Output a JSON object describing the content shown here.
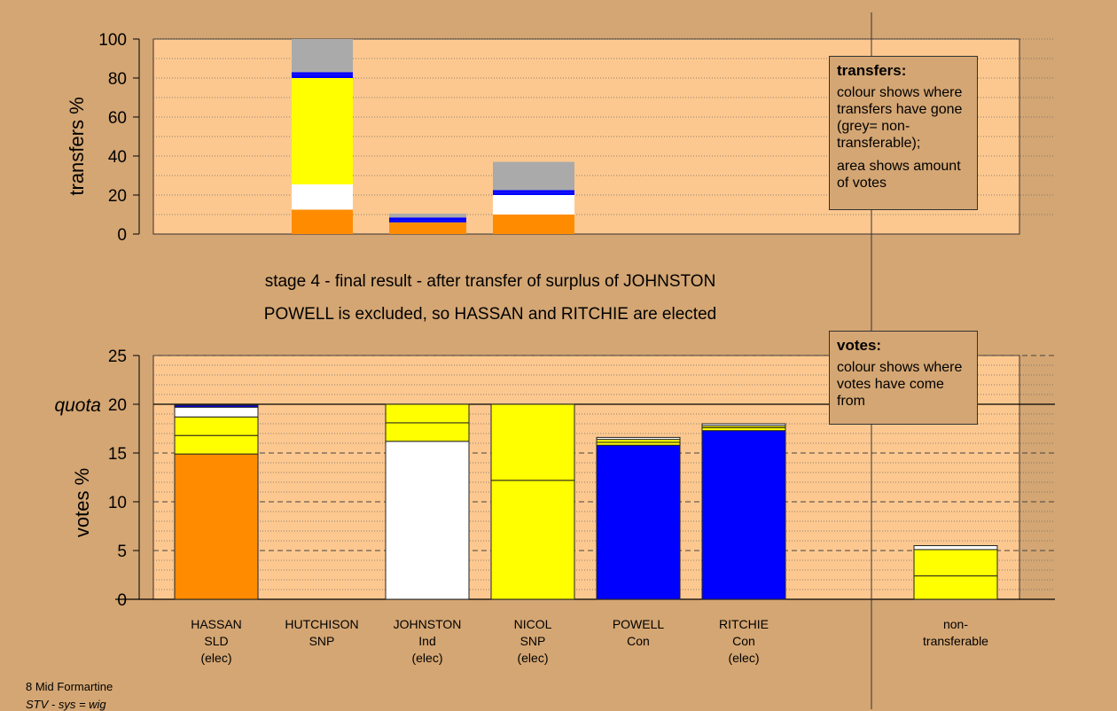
{
  "chart_data": [
    {
      "type": "bar",
      "stacked": true,
      "ylabel": "transfers %",
      "ylim": [
        0,
        100
      ],
      "yticks": [
        0,
        20,
        40,
        60,
        80,
        100
      ],
      "grid": "dotted",
      "colors": {
        "SLD": "#ff8c00",
        "Ind": "#ffffff",
        "SNP": "#ffff00",
        "Con": "#0000ff",
        "non-transferable": "#aaaaaa"
      },
      "bars": [
        {
          "from": "HUTCHISON",
          "segments": [
            {
              "to": "HASSAN",
              "value": 12.5,
              "color": "#ff8c00"
            },
            {
              "to": "JOHNSTON",
              "value": 13.0,
              "color": "#ffffff"
            },
            {
              "to": "NICOL",
              "value": 54.5,
              "color": "#ffff00"
            },
            {
              "to": "POWELL",
              "value": 1.5,
              "color": "#0000ff"
            },
            {
              "to": "RITCHIE",
              "value": 1.5,
              "color": "#0000ff"
            },
            {
              "to": "non-transferable",
              "value": 17.0,
              "color": "#aaaaaa"
            }
          ]
        },
        {
          "from": "JOHNSTON",
          "segments": [
            {
              "to": "HASSAN",
              "value": 6.0,
              "color": "#ff8c00"
            },
            {
              "to": "POWELL",
              "value": 1.0,
              "color": "#0000ff"
            },
            {
              "to": "RITCHIE",
              "value": 1.5,
              "color": "#0000ff"
            },
            {
              "to": "non-transferable",
              "value": 2.0,
              "color": "#aaaaaa"
            }
          ]
        },
        {
          "from": "NICOL",
          "segments": [
            {
              "to": "HASSAN",
              "value": 10.0,
              "color": "#ff8c00"
            },
            {
              "to": "JOHNSTON",
              "value": 10.0,
              "color": "#ffffff"
            },
            {
              "to": "POWELL",
              "value": 1.0,
              "color": "#0000ff"
            },
            {
              "to": "RITCHIE",
              "value": 1.5,
              "color": "#0000ff"
            },
            {
              "to": "non-transferable",
              "value": 14.5,
              "color": "#aaaaaa"
            }
          ]
        }
      ]
    },
    {
      "type": "bar",
      "stacked": true,
      "ylabel": "votes %",
      "ylim": [
        0,
        25
      ],
      "yticks": [
        0,
        5,
        10,
        15,
        20,
        25
      ],
      "quota": 20,
      "quota_label": "quota",
      "categories": [
        {
          "name": "HASSAN",
          "party": "SLD",
          "status": "(elec)"
        },
        {
          "name": "HUTCHISON",
          "party": "SNP",
          "status": ""
        },
        {
          "name": "JOHNSTON",
          "party": "Ind",
          "status": "(elec)"
        },
        {
          "name": "NICOL",
          "party": "SNP",
          "status": "(elec)"
        },
        {
          "name": "POWELL",
          "party": "Con",
          "status": ""
        },
        {
          "name": "RITCHIE",
          "party": "Con",
          "status": "(elec)"
        },
        {
          "name": "non-",
          "party": "transferable",
          "status": ""
        }
      ],
      "stacks": [
        [
          {
            "value": 14.9,
            "color": "#ff8c00"
          },
          {
            "value": 1.9,
            "color": "#ffff00"
          },
          {
            "value": 1.9,
            "color": "#ffff00"
          },
          {
            "value": 1.0,
            "color": "#ffffff"
          },
          {
            "value": 0.2,
            "color": "#0000ff"
          }
        ],
        [],
        [
          {
            "value": 16.2,
            "color": "#ffffff"
          },
          {
            "value": 1.9,
            "color": "#ffff00"
          },
          {
            "value": 1.9,
            "color": "#ffff00"
          }
        ],
        [
          {
            "value": 12.2,
            "color": "#ffff00"
          },
          {
            "value": 7.8,
            "color": "#ffff00"
          }
        ],
        [
          {
            "value": 15.8,
            "color": "#0000ff"
          },
          {
            "value": 0.3,
            "color": "#ffff00"
          },
          {
            "value": 0.3,
            "color": "#ffff00"
          },
          {
            "value": 0.2,
            "color": "#ffffff"
          }
        ],
        [
          {
            "value": 17.3,
            "color": "#0000ff"
          },
          {
            "value": 0.3,
            "color": "#ffff00"
          },
          {
            "value": 0.2,
            "color": "#ffff00"
          },
          {
            "value": 0.2,
            "color": "#ffffff"
          }
        ],
        [
          {
            "value": 2.4,
            "color": "#ffff00"
          },
          {
            "value": 2.7,
            "color": "#ffff00"
          },
          {
            "value": 0.4,
            "color": "#ffffff"
          }
        ]
      ]
    }
  ],
  "stage_title": "stage 4 - final result - after transfer of surplus of JOHNSTON",
  "stage_subtitle": "POWELL is excluded, so HASSAN and RITCHIE are elected",
  "legend_transfers": {
    "title": "transfers:",
    "text1": "colour shows where transfers have gone (grey= non-transferable);",
    "text2": "area shows amount of votes"
  },
  "legend_votes": {
    "title": "votes:",
    "text1": "colour shows where votes have come from"
  },
  "footer": {
    "ward": "8 Mid Formartine",
    "system": "STV - sys = wig"
  }
}
